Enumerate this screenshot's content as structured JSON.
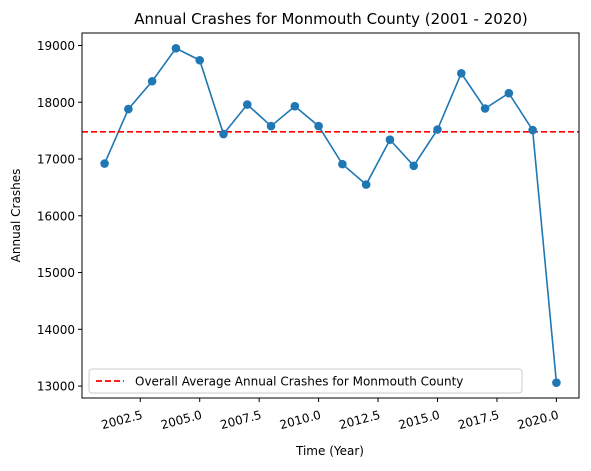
{
  "chart_data": {
    "type": "line",
    "title": "Annual Crashes for Monmouth County (2001 - 2020)",
    "xlabel": "Time (Year)",
    "ylabel": "Annual Crashes",
    "xlim": [
      2000.05,
      2020.95
    ],
    "ylim": [
      12790,
      19220
    ],
    "xticks": [
      2002.5,
      2005.0,
      2007.5,
      2010.0,
      2012.5,
      2015.0,
      2017.5,
      2020.0
    ],
    "xtick_labels": [
      "2002.5",
      "2005.0",
      "2007.5",
      "2010.0",
      "2012.5",
      "2015.0",
      "2017.5",
      "2020.0"
    ],
    "yticks": [
      13000,
      14000,
      15000,
      16000,
      17000,
      18000,
      19000
    ],
    "ytick_labels": [
      "13000",
      "14000",
      "15000",
      "16000",
      "17000",
      "18000",
      "19000"
    ],
    "grid": false,
    "legend_position": "bottom-left",
    "series": [
      {
        "values_x": [
          2001,
          2002,
          2003,
          2004,
          2005,
          2006,
          2007,
          2008,
          2009,
          2010,
          2011,
          2012,
          2013,
          2014,
          2015,
          2016,
          2017,
          2018,
          2019,
          2020
        ],
        "values_y": [
          16920,
          17880,
          18370,
          18950,
          18740,
          17440,
          17960,
          17580,
          17930,
          17580,
          16910,
          16550,
          17340,
          16880,
          17520,
          18510,
          17890,
          18160,
          17510,
          13060
        ],
        "color": "#1f77b4"
      }
    ],
    "reference_line": {
      "name": "Overall Average Annual Crashes for Monmouth County",
      "value": 17480,
      "color": "#ff0000",
      "style": "dashed"
    }
  }
}
